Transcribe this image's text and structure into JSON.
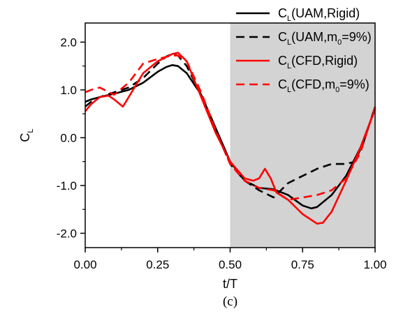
{
  "caption": "(c)",
  "chart_data": {
    "type": "line",
    "xlabel": "t/T",
    "ylabel": {
      "main": "C",
      "sub": "L"
    },
    "xlim": [
      0,
      1
    ],
    "ylim": [
      -2.3,
      2.4
    ],
    "xticks": [
      "0.00",
      "0.25",
      "0.50",
      "0.75",
      "1.00"
    ],
    "yticks": [
      "2.0",
      "1.0",
      "0.0",
      "-1.0",
      "-2.0"
    ],
    "xtick_values": [
      0,
      0.25,
      0.5,
      0.75,
      1.0
    ],
    "ytick_values": [
      2.0,
      1.0,
      0.0,
      -1.0,
      -2.0
    ],
    "shaded_region": {
      "x_start": 0.5,
      "x_end": 1.0,
      "color": "#d3d3d3"
    },
    "legend_position": "top-right",
    "series": [
      {
        "name": "C_L(UAM,Rigid)",
        "legend": {
          "pre": "C",
          "sub": "L",
          "post": "(UAM,Rigid)"
        },
        "color": "#000000",
        "dash": "solid",
        "x": [
          0,
          0.02,
          0.05,
          0.1,
          0.15,
          0.2,
          0.25,
          0.28,
          0.3,
          0.32,
          0.35,
          0.4,
          0.45,
          0.5,
          0.55,
          0.6,
          0.65,
          0.7,
          0.75,
          0.78,
          0.8,
          0.85,
          0.9,
          0.95,
          1.0
        ],
        "y": [
          0.75,
          0.8,
          0.85,
          0.92,
          1.0,
          1.15,
          1.38,
          1.48,
          1.52,
          1.5,
          1.35,
          0.9,
          0.2,
          -0.5,
          -0.9,
          -1.05,
          -1.08,
          -1.2,
          -1.42,
          -1.48,
          -1.45,
          -1.2,
          -0.8,
          -0.2,
          0.6
        ]
      },
      {
        "name": "C_L(UAM,m_0=9%)",
        "legend": {
          "pre": "C",
          "sub": "L",
          "post": "(UAM,m",
          "sub2": "0",
          "post2": "=9%)"
        },
        "color": "#000000",
        "dash": "dashed",
        "x": [
          0,
          0.02,
          0.05,
          0.1,
          0.15,
          0.2,
          0.25,
          0.28,
          0.3,
          0.32,
          0.35,
          0.4,
          0.45,
          0.5,
          0.55,
          0.6,
          0.65,
          0.7,
          0.75,
          0.8,
          0.85,
          0.9,
          0.93,
          0.96,
          1.0
        ],
        "y": [
          0.65,
          0.75,
          0.85,
          0.95,
          1.05,
          1.25,
          1.55,
          1.7,
          1.75,
          1.72,
          1.5,
          0.9,
          0.15,
          -0.55,
          -0.9,
          -1.1,
          -1.25,
          -0.95,
          -0.8,
          -0.65,
          -0.55,
          -0.55,
          -0.5,
          -0.1,
          0.65
        ]
      },
      {
        "name": "C_L(CFD,Rigid)",
        "legend": {
          "pre": "C",
          "sub": "L",
          "post": "(CFD,Rigid)"
        },
        "color": "#ff0000",
        "dash": "solid",
        "x": [
          0,
          0.02,
          0.05,
          0.08,
          0.1,
          0.13,
          0.15,
          0.18,
          0.2,
          0.25,
          0.3,
          0.32,
          0.35,
          0.4,
          0.45,
          0.5,
          0.55,
          0.58,
          0.6,
          0.62,
          0.64,
          0.66,
          0.7,
          0.75,
          0.8,
          0.82,
          0.85,
          0.9,
          0.95,
          1.0
        ],
        "y": [
          0.55,
          0.7,
          0.85,
          0.88,
          0.8,
          0.65,
          0.85,
          1.15,
          1.35,
          1.6,
          1.75,
          1.78,
          1.6,
          0.85,
          0.1,
          -0.5,
          -0.85,
          -0.9,
          -0.85,
          -0.65,
          -0.85,
          -1.15,
          -1.3,
          -1.6,
          -1.8,
          -1.78,
          -1.55,
          -0.9,
          -0.2,
          0.6
        ]
      },
      {
        "name": "C_L(CFD,m_0=9%)",
        "legend": {
          "pre": "C",
          "sub": "L",
          "post": "(CFD,m",
          "sub2": "0",
          "post2": "=9%)"
        },
        "color": "#ff0000",
        "dash": "dashed",
        "x": [
          0,
          0.02,
          0.05,
          0.1,
          0.15,
          0.2,
          0.25,
          0.3,
          0.32,
          0.35,
          0.4,
          0.45,
          0.5,
          0.55,
          0.6,
          0.65,
          0.7,
          0.75,
          0.8,
          0.85,
          0.9,
          0.95,
          1.0
        ],
        "y": [
          0.95,
          1.0,
          1.05,
          0.9,
          1.15,
          1.55,
          1.65,
          1.72,
          1.72,
          1.6,
          0.95,
          0.15,
          -0.55,
          -0.9,
          -1.05,
          -1.1,
          -1.3,
          -1.25,
          -1.2,
          -1.1,
          -0.85,
          -0.3,
          0.65
        ]
      }
    ]
  }
}
